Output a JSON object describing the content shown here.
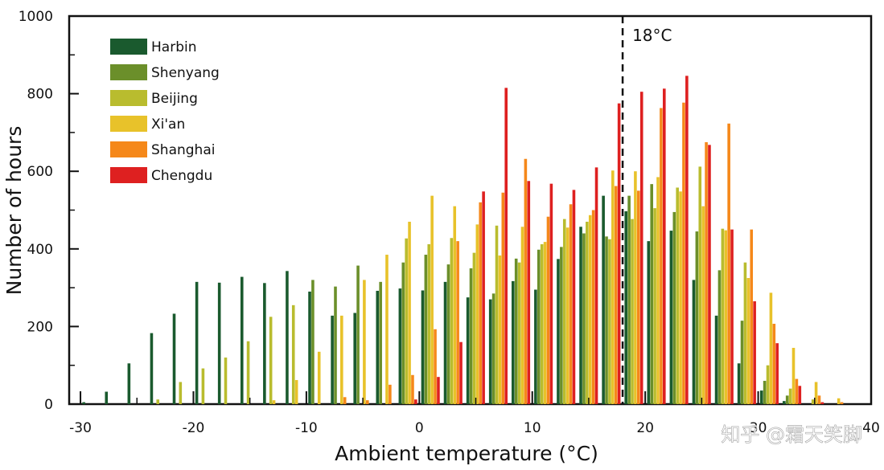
{
  "chart_data": {
    "type": "bar",
    "xlabel": "Ambient temperature (°C)",
    "ylabel": "Number of hours",
    "xlim": [
      -31,
      40
    ],
    "ylim": [
      0,
      1000
    ],
    "x_ticks": [
      -30,
      -20,
      -10,
      0,
      10,
      20,
      30,
      40
    ],
    "y_ticks": [
      0,
      200,
      400,
      600,
      800,
      1000
    ],
    "x_tick_labels": [
      "-30",
      "-20",
      "-10",
      "0",
      "10",
      "20",
      "30",
      "40"
    ],
    "y_tick_labels": [
      "0",
      "200",
      "400",
      "600",
      "800",
      "1000"
    ],
    "bin_centers": [
      -29,
      -27,
      -25,
      -23,
      -21,
      -19,
      -17,
      -15,
      -13,
      -11,
      -9,
      -7,
      -5,
      -3,
      -1,
      1,
      3,
      5,
      7,
      9,
      11,
      13,
      15,
      17,
      19,
      21,
      23,
      25,
      27,
      29,
      31,
      33,
      35,
      37
    ],
    "series": [
      {
        "name": "Harbin",
        "color": "#1a5a2e",
        "values": [
          5,
          32,
          105,
          183,
          233,
          315,
          313,
          328,
          312,
          343,
          290,
          228,
          235,
          292,
          298,
          293,
          315,
          275,
          270,
          317,
          295,
          374,
          457,
          537,
          497,
          420,
          447,
          320,
          228,
          105,
          35,
          8,
          0,
          0
        ]
      },
      {
        "name": "Shenyang",
        "color": "#6b8f2a",
        "values": [
          0,
          0,
          0,
          0,
          0,
          0,
          0,
          0,
          0,
          0,
          320,
          303,
          357,
          315,
          365,
          385,
          360,
          350,
          285,
          375,
          398,
          405,
          440,
          432,
          537,
          567,
          495,
          445,
          345,
          215,
          60,
          22,
          0,
          0
        ]
      },
      {
        "name": "Beijing",
        "color": "#b9bc2e",
        "values": [
          0,
          0,
          0,
          12,
          57,
          92,
          120,
          162,
          225,
          255,
          0,
          0,
          0,
          0,
          427,
          412,
          428,
          390,
          460,
          365,
          412,
          477,
          470,
          425,
          477,
          505,
          558,
          612,
          452,
          365,
          100,
          40,
          12,
          0
        ]
      },
      {
        "name": "Xi'an",
        "color": "#e8c22a",
        "values": [
          0,
          0,
          0,
          0,
          0,
          0,
          0,
          0,
          10,
          62,
          135,
          228,
          320,
          385,
          470,
          537,
          510,
          463,
          383,
          457,
          418,
          455,
          487,
          602,
          600,
          585,
          548,
          510,
          448,
          325,
          287,
          145,
          57,
          15
        ]
      },
      {
        "name": "Shanghai",
        "color": "#f5881a",
        "values": [
          0,
          0,
          0,
          0,
          0,
          0,
          0,
          0,
          0,
          0,
          0,
          18,
          10,
          50,
          75,
          193,
          420,
          520,
          545,
          632,
          483,
          515,
          500,
          562,
          550,
          763,
          777,
          675,
          723,
          450,
          207,
          65,
          22,
          5
        ]
      },
      {
        "name": "Chengdu",
        "color": "#de2020",
        "values": [
          0,
          0,
          0,
          0,
          0,
          0,
          0,
          0,
          0,
          0,
          0,
          0,
          0,
          0,
          12,
          70,
          160,
          548,
          815,
          575,
          568,
          552,
          610,
          775,
          805,
          813,
          846,
          668,
          450,
          265,
          157,
          47,
          5,
          0
        ]
      }
    ],
    "annotations": [
      {
        "text": "18°C",
        "x": 18,
        "style": "dashed vertical reference line"
      }
    ],
    "legend": {
      "position": "top-left"
    },
    "watermark": "知乎 @霜天笑脚"
  }
}
